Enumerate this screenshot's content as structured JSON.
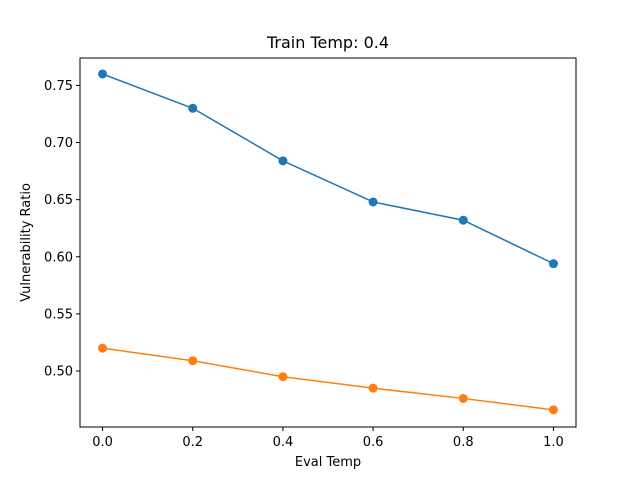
{
  "chart_data": {
    "type": "line",
    "title": "Train Temp: 0.4",
    "xlabel": "Eval Temp",
    "ylabel": "Vulnerability Ratio",
    "xlim": [
      -0.05,
      1.05
    ],
    "ylim": [
      0.451,
      0.774
    ],
    "xticks": [
      0.0,
      0.2,
      0.4,
      0.6,
      0.8,
      1.0
    ],
    "xtick_labels": [
      "0.0",
      "0.2",
      "0.4",
      "0.6",
      "0.8",
      "1.0"
    ],
    "yticks": [
      0.5,
      0.55,
      0.6,
      0.65,
      0.7,
      0.75
    ],
    "ytick_labels": [
      "0.50",
      "0.55",
      "0.60",
      "0.65",
      "0.70",
      "0.75"
    ],
    "grid": false,
    "legend": false,
    "x": [
      0.0,
      0.2,
      0.4,
      0.6,
      0.8,
      1.0
    ],
    "series": [
      {
        "color": "#1f77b4",
        "marker": "circle",
        "values": [
          0.76,
          0.73,
          0.684,
          0.648,
          0.632,
          0.594
        ]
      },
      {
        "color": "#ff7f0e",
        "marker": "circle",
        "values": [
          0.52,
          0.509,
          0.495,
          0.485,
          0.476,
          0.466
        ]
      }
    ]
  }
}
